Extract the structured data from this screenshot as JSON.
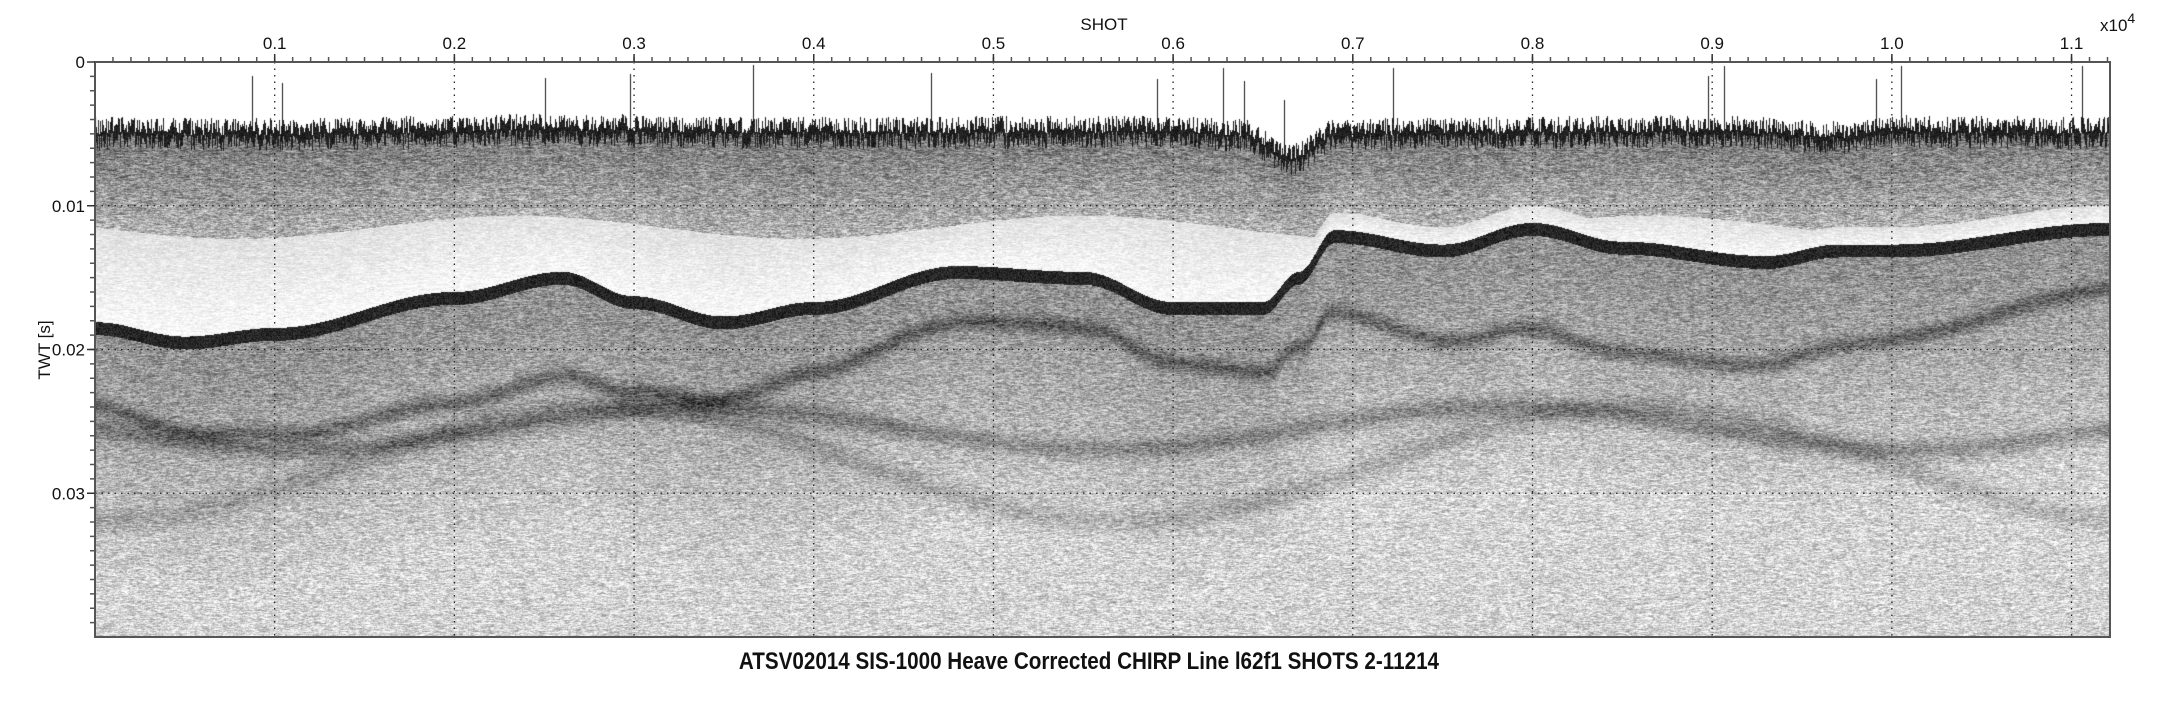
{
  "chart_data": {
    "type": "heatmap",
    "title": "ATSV02014 SIS-1000 Heave Corrected CHIRP Line l62f1 SHOTS 2-11214",
    "xlabel": "SHOT",
    "x_multiplier_base": "x10",
    "x_multiplier_exp": "4",
    "ylabel": "TWT [s]",
    "xlim": [
      0,
      1.1214
    ],
    "ylim": [
      0,
      0.04
    ],
    "y_reversed": true,
    "x_ticks": [
      {
        "value": 0.1,
        "label": "0.1"
      },
      {
        "value": 0.2,
        "label": "0.2"
      },
      {
        "value": 0.3,
        "label": "0.3"
      },
      {
        "value": 0.4,
        "label": "0.4"
      },
      {
        "value": 0.5,
        "label": "0.5"
      },
      {
        "value": 0.6,
        "label": "0.6"
      },
      {
        "value": 0.7,
        "label": "0.7"
      },
      {
        "value": 0.8,
        "label": "0.8"
      },
      {
        "value": 0.9,
        "label": "0.9"
      },
      {
        "value": 1.0,
        "label": "1.0"
      },
      {
        "value": 1.1,
        "label": "1.1"
      }
    ],
    "y_ticks": [
      {
        "value": 0,
        "label": "0"
      },
      {
        "value": 0.01,
        "label": "0.01"
      },
      {
        "value": 0.02,
        "label": "0.02"
      },
      {
        "value": 0.03,
        "label": "0.03"
      }
    ],
    "x_minor_step": 0.01,
    "y_minor_step": 0.001,
    "grid": true,
    "colormap": "grayscale",
    "colors": {
      "frame": "#555555",
      "reflector": "#000000",
      "background": "#ffffff"
    },
    "horizons": [
      {
        "name": "seafloor",
        "x": [
          0,
          0.1,
          0.25,
          0.4,
          0.6,
          0.64,
          0.665,
          0.69,
          0.75,
          0.9,
          0.975,
          1.0,
          1.1214
        ],
        "y": [
          0.0048,
          0.0049,
          0.0046,
          0.0048,
          0.0047,
          0.005,
          0.0067,
          0.005,
          0.0048,
          0.0047,
          0.0051,
          0.0047,
          0.0048
        ]
      },
      {
        "name": "strong-reflector",
        "x": [
          0,
          0.05,
          0.1,
          0.2,
          0.26,
          0.3,
          0.35,
          0.4,
          0.48,
          0.55,
          0.6,
          0.65,
          0.67,
          0.69,
          0.75,
          0.8,
          0.85,
          0.93,
          0.97,
          1.0,
          1.1214
        ],
        "y": [
          0.0184,
          0.0194,
          0.0188,
          0.0163,
          0.0149,
          0.0166,
          0.018,
          0.017,
          0.0145,
          0.0149,
          0.017,
          0.017,
          0.0149,
          0.012,
          0.013,
          0.0115,
          0.0128,
          0.0138,
          0.013,
          0.013,
          0.0115
        ]
      }
    ]
  }
}
